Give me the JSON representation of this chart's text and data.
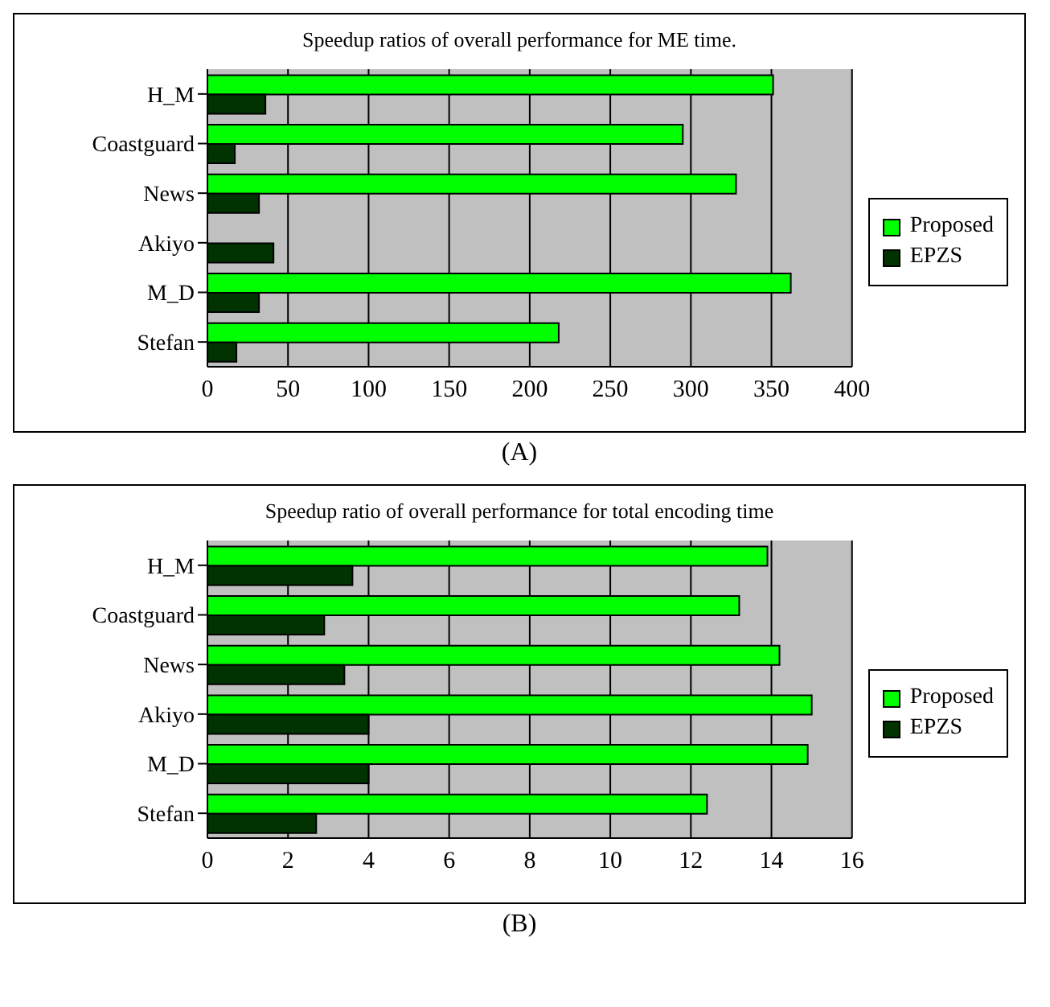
{
  "chart_data": [
    {
      "type": "bar",
      "orientation": "horizontal",
      "title": "Speedup ratios of overall performance for ME time.",
      "categories": [
        "H_M",
        "Coastguard",
        "News",
        "Akiyo",
        "M_D",
        "Stefan"
      ],
      "series": [
        {
          "name": "Proposed",
          "color": "#00ff00",
          "values": [
            351,
            295,
            328,
            null,
            362,
            218
          ]
        },
        {
          "name": "EPZS",
          "color": "#003300",
          "values": [
            36,
            17,
            32,
            41,
            32,
            18
          ]
        }
      ],
      "xlim": [
        0,
        400
      ],
      "xticks": [
        0,
        50,
        100,
        150,
        200,
        250,
        300,
        350,
        400
      ],
      "grid": "x",
      "legend": "right",
      "annotations": [
        "(A)"
      ]
    },
    {
      "type": "bar",
      "orientation": "horizontal",
      "title": "Speedup ratio of overall performance for total encoding time",
      "categories": [
        "H_M",
        "Coastguard",
        "News",
        "Akiyo",
        "M_D",
        "Stefan"
      ],
      "series": [
        {
          "name": "Proposed",
          "color": "#00ff00",
          "values": [
            13.9,
            13.2,
            14.2,
            15.0,
            14.9,
            12.4
          ]
        },
        {
          "name": "EPZS",
          "color": "#003300",
          "values": [
            3.6,
            2.9,
            3.4,
            4.0,
            4.0,
            2.7
          ]
        }
      ],
      "xlim": [
        0,
        16
      ],
      "xticks": [
        0,
        2,
        4,
        6,
        8,
        10,
        12,
        14,
        16
      ],
      "grid": "x",
      "legend": "right",
      "annotations": [
        "(B)"
      ]
    }
  ]
}
